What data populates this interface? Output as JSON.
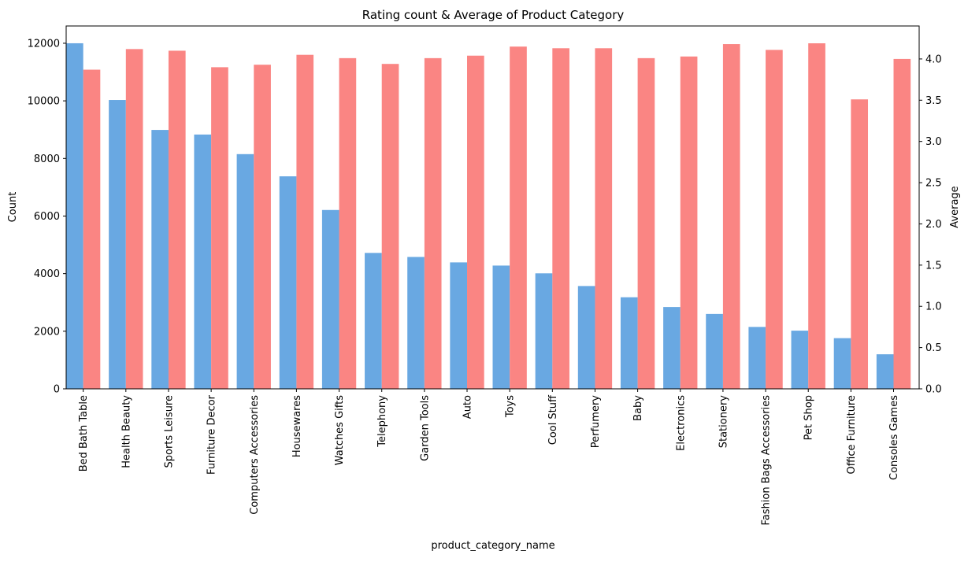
{
  "chart_data": {
    "type": "bar",
    "title": "Rating count & Average of Product Category",
    "xlabel": "product_category_name",
    "ylabel": "Count",
    "y2label": "Average",
    "ylim": [
      0,
      12600
    ],
    "y2lim": [
      0,
      4.4
    ],
    "yticks": [
      0,
      2000,
      4000,
      6000,
      8000,
      10000,
      12000
    ],
    "y2ticks": [
      "0.0",
      "0.5",
      "1.0",
      "1.5",
      "2.0",
      "2.5",
      "3.0",
      "3.5",
      "4.0"
    ],
    "grid": false,
    "categories": [
      "Bed Bath Table",
      "Health Beauty",
      "Sports Leisure",
      "Furniture Decor",
      "Computers Accessories",
      "Housewares",
      "Watches Gifts",
      "Telephony",
      "Garden Tools",
      "Auto",
      "Toys",
      "Cool Stuff",
      "Perfumery",
      "Baby",
      "Electronics",
      "Stationery",
      "Fashion Bags Accessories",
      "Pet Shop",
      "Office Furniture",
      "Consoles Games"
    ],
    "series": [
      {
        "axis": "left",
        "color": "#69a8e2",
        "values": [
          12000,
          10030,
          8990,
          8830,
          8150,
          7380,
          6210,
          4720,
          4580,
          4390,
          4280,
          4010,
          3570,
          3180,
          2840,
          2600,
          2150,
          2020,
          1760,
          1200
        ]
      },
      {
        "axis": "right",
        "color": "#fa8583",
        "values": [
          3.87,
          4.12,
          4.1,
          3.9,
          3.93,
          4.05,
          4.01,
          3.94,
          4.01,
          4.04,
          4.15,
          4.13,
          4.13,
          4.01,
          4.03,
          4.18,
          4.11,
          4.19,
          3.51,
          4.0
        ]
      }
    ]
  }
}
